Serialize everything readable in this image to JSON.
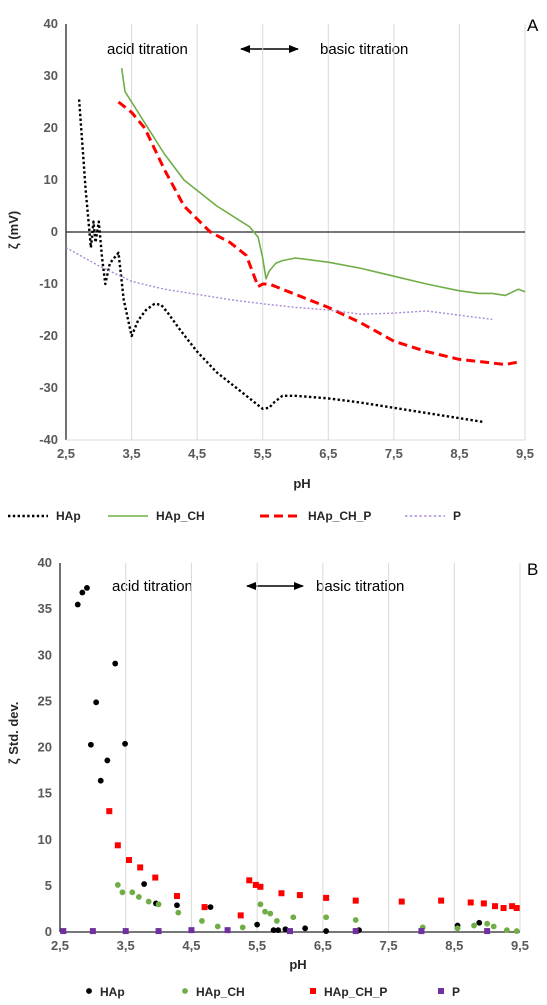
{
  "chart_data": [
    {
      "id": "A",
      "type": "line",
      "panel_label": "A",
      "xlabel": "pH",
      "ylabel": "ζ (mV)",
      "xlim": [
        2.5,
        9.5
      ],
      "ylim": [
        -40,
        40
      ],
      "xticks": [
        "2,5",
        "3,5",
        "4,5",
        "5,5",
        "6,5",
        "7,5",
        "8,5",
        "9,5"
      ],
      "yticks": [
        "40",
        "30",
        "20",
        "10",
        "0",
        "-10",
        "-20",
        "-30",
        "-40"
      ],
      "grid": "vertical",
      "legend_position": "bottom",
      "annotation_left": "acid titration",
      "annotation_right": "basic titration",
      "series": [
        {
          "name": "HAp",
          "color": "#000000",
          "style": "dotted",
          "x": [
            2.7,
            2.8,
            2.88,
            2.92,
            2.95,
            3.0,
            3.05,
            3.1,
            3.17,
            3.3,
            3.38,
            3.5,
            3.6,
            3.72,
            3.85,
            3.95,
            4.05,
            4.25,
            4.5,
            4.8,
            5.1,
            5.3,
            5.5,
            5.6,
            5.65,
            5.8,
            6.0,
            6.5,
            7.0,
            7.5,
            8.0,
            8.5,
            8.85
          ],
          "y": [
            25.5,
            8,
            -3,
            2,
            -2,
            2,
            -5,
            -10,
            -6,
            -4,
            -13,
            -20,
            -17,
            -15,
            -13.8,
            -14,
            -15.5,
            -19,
            -23,
            -27,
            -30,
            -32,
            -34,
            -33.8,
            -33,
            -31.5,
            -31.5,
            -32,
            -32.8,
            -33.8,
            -34.8,
            -35.8,
            -36.5
          ]
        },
        {
          "name": "HAp_CH",
          "color": "#70ad47",
          "style": "solid",
          "x": [
            3.35,
            3.4,
            3.5,
            3.7,
            4.0,
            4.3,
            4.8,
            5.3,
            5.43,
            5.5,
            5.55,
            5.6,
            5.7,
            5.8,
            6.0,
            6.5,
            7.0,
            7.5,
            8.0,
            8.5,
            8.8,
            9.0,
            9.2,
            9.4,
            9.5
          ],
          "y": [
            31.5,
            27,
            25,
            21,
            15,
            10,
            5,
            1,
            -1,
            -5,
            -9,
            -7.5,
            -6,
            -5.5,
            -5,
            -5.8,
            -7,
            -8.5,
            -10,
            -11.3,
            -11.8,
            -11.8,
            -12.2,
            -11,
            -11.5
          ]
        },
        {
          "name": "HAp_CH_P",
          "color": "#ff0000",
          "style": "dashed",
          "x": [
            3.3,
            3.5,
            3.7,
            4.0,
            4.3,
            4.7,
            5.0,
            5.25,
            5.43,
            5.5,
            5.6,
            5.7,
            6.0,
            6.5,
            7.0,
            7.5,
            8.0,
            8.5,
            9.0,
            9.2,
            9.4
          ],
          "y": [
            25,
            23,
            20,
            12,
            5,
            0,
            -2,
            -4.5,
            -10.5,
            -10,
            -10,
            -10.5,
            -12,
            -14.5,
            -17.5,
            -21,
            -23,
            -24.5,
            -25.2,
            -25.5,
            -25
          ]
        },
        {
          "name": "P",
          "color": "#a78bd6",
          "style": "dotted",
          "x": [
            2.5,
            3.0,
            3.5,
            4.0,
            4.5,
            5.0,
            5.5,
            6.0,
            6.5,
            7.0,
            7.5,
            8.0,
            8.5,
            9.0
          ],
          "y": [
            -3,
            -6.5,
            -9.5,
            -11,
            -12,
            -13,
            -13.8,
            -14.5,
            -15,
            -15.8,
            -15.6,
            -15.2,
            -16,
            -16.8
          ]
        }
      ]
    },
    {
      "id": "B",
      "type": "scatter",
      "panel_label": "B",
      "xlabel": "pH",
      "ylabel": "ζ Std. dev.",
      "xlim": [
        2.5,
        9.5
      ],
      "ylim": [
        0,
        40
      ],
      "xticks": [
        "2,5",
        "3,5",
        "4,5",
        "5,5",
        "6,5",
        "7,5",
        "8,5",
        "9,5"
      ],
      "yticks": [
        "40",
        "35",
        "30",
        "25",
        "20",
        "15",
        "10",
        "5",
        "0"
      ],
      "grid": "vertical",
      "legend_position": "bottom",
      "annotation_left": "acid titration",
      "annotation_right": "basic titration",
      "series": [
        {
          "name": "HAp",
          "color": "#000000",
          "marker": "circle",
          "x": [
            2.77,
            2.84,
            2.91,
            2.97,
            3.05,
            3.12,
            3.22,
            3.34,
            3.49,
            3.78,
            3.96,
            4.28,
            4.79,
            5.5,
            5.75,
            5.82,
            5.93,
            6.23,
            6.55,
            7.05,
            8.55,
            8.88
          ],
          "y": [
            35.5,
            36.8,
            37.3,
            20.3,
            24.9,
            16.4,
            18.6,
            29.1,
            20.4,
            5.2,
            3.1,
            2.9,
            2.7,
            0.8,
            0.2,
            0.2,
            0.3,
            0.4,
            0.1,
            0.2,
            0.7,
            1.0
          ]
        },
        {
          "name": "HAp_CH",
          "color": "#70ad47",
          "marker": "circle",
          "x": [
            3.38,
            3.45,
            3.6,
            3.7,
            3.85,
            4.0,
            4.3,
            4.66,
            4.9,
            5.28,
            5.55,
            5.62,
            5.7,
            5.8,
            6.05,
            6.55,
            7.0,
            8.02,
            8.55,
            8.8,
            9.0,
            9.1,
            9.3,
            9.45
          ],
          "y": [
            5.1,
            4.3,
            4.3,
            3.8,
            3.3,
            3.0,
            2.1,
            1.2,
            0.6,
            0.5,
            3.0,
            2.2,
            2.0,
            1.2,
            1.6,
            1.6,
            1.3,
            0.5,
            0.4,
            0.7,
            0.9,
            0.6,
            0.2,
            0.1
          ]
        },
        {
          "name": "HAp_CH_P",
          "color": "#ff0000",
          "marker": "square",
          "x": [
            3.25,
            3.38,
            3.55,
            3.72,
            3.95,
            4.28,
            4.7,
            5.25,
            5.38,
            5.48,
            5.55,
            5.87,
            6.15,
            6.55,
            7.0,
            7.7,
            8.3,
            8.75,
            8.95,
            9.12,
            9.25,
            9.38,
            9.45
          ],
          "y": [
            13.1,
            9.4,
            7.8,
            7.0,
            5.9,
            3.9,
            2.7,
            1.8,
            5.6,
            5.1,
            4.9,
            4.2,
            4.0,
            3.7,
            3.4,
            3.3,
            3.4,
            3.2,
            3.1,
            2.8,
            2.6,
            2.8,
            2.6
          ]
        },
        {
          "name": "P",
          "color": "#7030a0",
          "marker": "square",
          "x": [
            2.55,
            3.0,
            3.5,
            4.0,
            4.5,
            5.05,
            6.0,
            7.0,
            8.0,
            9.0
          ],
          "y": [
            0.1,
            0.1,
            0.1,
            0.1,
            0.2,
            0.2,
            0.1,
            0.1,
            0.1,
            0.1
          ]
        }
      ]
    }
  ]
}
